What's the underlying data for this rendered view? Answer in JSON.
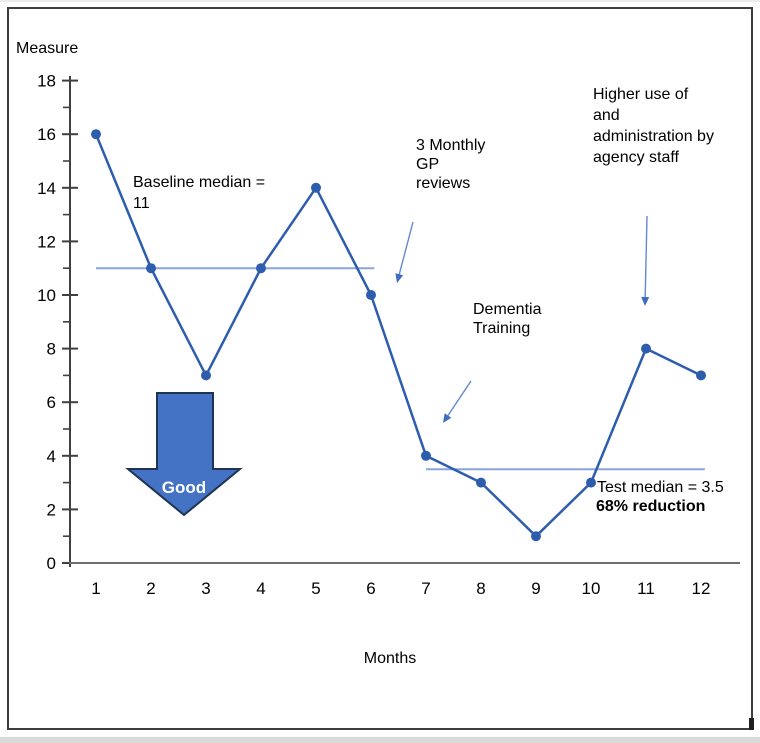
{
  "chart_data": {
    "type": "line",
    "title": "",
    "xlabel": "Months",
    "ylabel": "Measure",
    "x": [
      1,
      2,
      3,
      4,
      5,
      6,
      7,
      8,
      9,
      10,
      11,
      12
    ],
    "values": [
      16,
      11,
      7,
      11,
      14,
      10,
      4,
      3,
      1,
      3,
      8,
      7
    ],
    "ylim": [
      0,
      18
    ],
    "yticks": [
      0,
      2,
      4,
      6,
      8,
      10,
      12,
      14,
      16,
      18
    ],
    "ytick_interval": 2,
    "grid": false,
    "legend": false,
    "medians": [
      {
        "name": "baseline_median",
        "value": 11,
        "x_start": 1,
        "x_end": 6.06,
        "label": "Baseline median =\n11"
      },
      {
        "name": "test_median",
        "value": 3.5,
        "x_start": 7,
        "x_end": 12.07,
        "label": "Test median = 3.5"
      }
    ],
    "annotations": [
      {
        "id": "gp_reviews",
        "text": "3 Monthly\nGP\nreviews",
        "arrow": true
      },
      {
        "id": "dementia_training",
        "text": "Dementia\nTraining",
        "arrow": true
      },
      {
        "id": "agency_staff",
        "text": "Higher use of\nand\nadministration by\nagency staff",
        "arrow": true
      },
      {
        "id": "reduction",
        "text": "68% reduction",
        "bold": true
      },
      {
        "id": "good_direction",
        "text": "Good",
        "shape": "block-down-arrow"
      }
    ],
    "colors": {
      "series": "#2e5dad",
      "marker": "#2e5dad",
      "median_line": "#8aa5dc",
      "good_arrow_fill": "#4472c4",
      "good_arrow_stroke": "#1f3352",
      "good_arrow_text": "#ffffff",
      "annotation_arrow_line": "#6189d2",
      "annotation_arrow_head": "#3e6cc0",
      "y_axis": "#404040",
      "x_axis": "#6e6e6e",
      "text": "#000000"
    }
  }
}
